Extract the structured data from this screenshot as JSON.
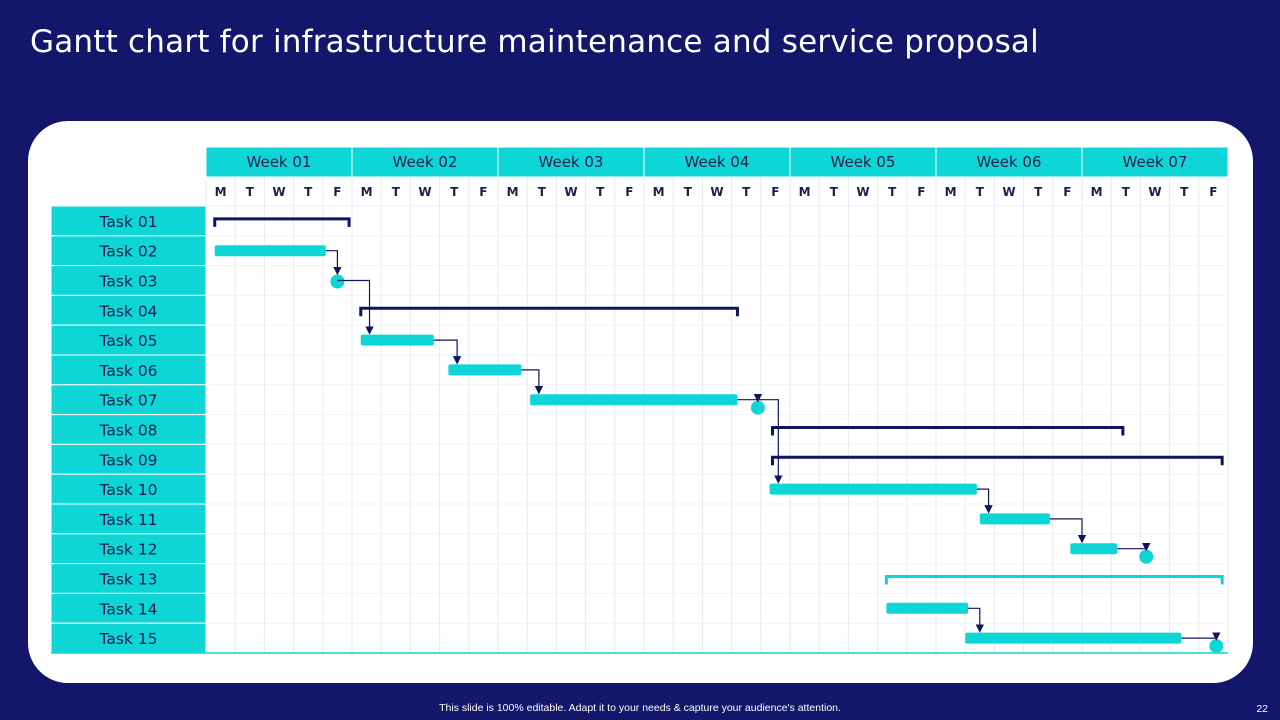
{
  "title": "Gantt chart for infrastructure maintenance and service proposal",
  "footer": "This slide is 100% editable.  Adapt it to your needs & capture your audience's attention.",
  "page_number": "22",
  "colors": {
    "background": "#13166b",
    "accent": "#0fd6d6",
    "navy": "#0e1560",
    "text": "#1a1f4d",
    "grid": "#e8eaf0"
  },
  "chart_data": {
    "type": "gantt",
    "weeks": [
      "Week 01",
      "Week 02",
      "Week 03",
      "Week 04",
      "Week 05",
      "Week 06",
      "Week 07"
    ],
    "days": [
      "M",
      "T",
      "W",
      "T",
      "F"
    ],
    "tasks": [
      {
        "name": "Task 01",
        "kind": "summary",
        "start": 0.3,
        "end": 4.9,
        "color": "#0e1560"
      },
      {
        "name": "Task 02",
        "kind": "bar",
        "start": 0.3,
        "end": 4.1,
        "color": "#0fd6d6"
      },
      {
        "name": "Task 03",
        "kind": "milestone",
        "start": 4.5,
        "end": 4.5,
        "color": "#0fd6d6"
      },
      {
        "name": "Task 04",
        "kind": "summary",
        "start": 5.3,
        "end": 18.2,
        "color": "#0e1560"
      },
      {
        "name": "Task 05",
        "kind": "bar",
        "start": 5.3,
        "end": 7.8,
        "color": "#0fd6d6"
      },
      {
        "name": "Task 06",
        "kind": "bar",
        "start": 8.3,
        "end": 10.8,
        "color": "#0fd6d6"
      },
      {
        "name": "Task 07",
        "kind": "bar",
        "start": 11.1,
        "end": 18.2,
        "color": "#0fd6d6"
      },
      {
        "name": "Task 08",
        "kind": "summary",
        "start": 19.4,
        "end": 31.4,
        "color": "#0e1560"
      },
      {
        "name": "Task 09",
        "kind": "summary",
        "start": 19.4,
        "end": 34.8,
        "color": "#0e1560"
      },
      {
        "name": "Task 10",
        "kind": "bar",
        "start": 19.3,
        "end": 26.4,
        "color": "#0fd6d6"
      },
      {
        "name": "Task 11",
        "kind": "bar",
        "start": 26.5,
        "end": 28.9,
        "color": "#0fd6d6"
      },
      {
        "name": "Task 12",
        "kind": "bar",
        "start": 29.6,
        "end": 31.2,
        "color": "#0fd6d6"
      },
      {
        "name": "Task 13",
        "kind": "summary",
        "start": 23.3,
        "end": 34.8,
        "color": "#0fd6d6"
      },
      {
        "name": "Task 14",
        "kind": "bar",
        "start": 23.3,
        "end": 26.1,
        "color": "#0fd6d6"
      },
      {
        "name": "Task 15",
        "kind": "bar",
        "start": 26.0,
        "end": 33.4,
        "color": "#0fd6d6"
      }
    ],
    "extra_milestones": [
      {
        "row": 6,
        "x": 18.9
      },
      {
        "row": 11,
        "x": 32.2
      },
      {
        "row": 14,
        "x": 34.6
      }
    ],
    "dependencies": [
      {
        "from_row": 1,
        "from_x": 4.1,
        "to_row": 2,
        "to_x": 4.5
      },
      {
        "from_row": 2,
        "from_x": 4.5,
        "to_row": 4,
        "to_x": 5.6
      },
      {
        "from_row": 4,
        "from_x": 7.8,
        "to_row": 5,
        "to_x": 8.6
      },
      {
        "from_row": 5,
        "from_x": 10.8,
        "to_row": 6,
        "to_x": 11.4
      },
      {
        "from_row": 6,
        "from_x": 18.2,
        "to_row": 6,
        "to_x": 18.9,
        "milestone": true
      },
      {
        "from_row": 6,
        "from_x": 18.9,
        "to_row": 9,
        "to_x": 19.6
      },
      {
        "from_row": 9,
        "from_x": 26.4,
        "to_row": 10,
        "to_x": 26.8
      },
      {
        "from_row": 10,
        "from_x": 28.9,
        "to_row": 11,
        "to_x": 30.0
      },
      {
        "from_row": 11,
        "from_x": 31.2,
        "to_row": 11,
        "to_x": 32.2,
        "milestone": true
      },
      {
        "from_row": 13,
        "from_x": 26.1,
        "to_row": 14,
        "to_x": 26.5
      },
      {
        "from_row": 14,
        "from_x": 33.4,
        "to_row": 14,
        "to_x": 34.6,
        "milestone": true
      }
    ]
  }
}
